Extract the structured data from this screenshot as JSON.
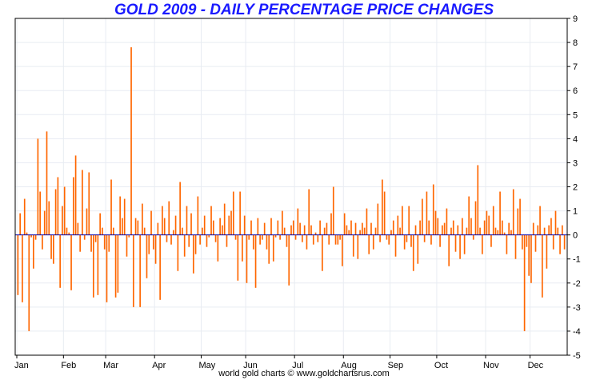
{
  "colors": {
    "bar": "#ff6600",
    "zero_line": "#0000aa",
    "grid": "#e8ecf2",
    "title": "#1a1aff"
  },
  "footer": "world gold charts © www.goldchartsrus.com",
  "chart_data": {
    "type": "bar",
    "title": "GOLD 2009 - DAILY PERCENTAGE PRICE CHANGES",
    "xlabel": "",
    "ylabel": "",
    "ylim": [
      -5,
      9
    ],
    "yticks": [
      -5,
      -4,
      -3,
      -2,
      -1,
      0,
      1,
      2,
      3,
      4,
      5,
      6,
      7,
      8,
      9
    ],
    "y_axis_side": "right",
    "grid": true,
    "months": [
      "Jan",
      "Feb",
      "Mar",
      "Apr",
      "May",
      "Jun",
      "Jul",
      "Aug",
      "Sep",
      "Oct",
      "Nov",
      "Dec"
    ],
    "x_unit": "trading day index (0-based, ~252 days in 2009)",
    "month_start_day": [
      0,
      21,
      40,
      62,
      83,
      103,
      125,
      147,
      168,
      189,
      211,
      231
    ],
    "values": [
      -2.5,
      0.9,
      -2.8,
      1.5,
      0.1,
      -4.0,
      -0.1,
      -1.4,
      -0.2,
      4.0,
      1.8,
      -0.6,
      1.0,
      4.3,
      1.4,
      -1.0,
      -1.2,
      1.9,
      2.4,
      -2.2,
      1.2,
      2.0,
      0.3,
      0.1,
      -2.3,
      2.4,
      3.3,
      0.5,
      -0.7,
      2.7,
      -0.2,
      1.1,
      2.6,
      -0.7,
      -2.6,
      -0.3,
      -2.5,
      0.9,
      0.3,
      -0.6,
      -2.8,
      -0.7,
      2.3,
      0.3,
      -2.6,
      -2.4,
      1.6,
      0.7,
      1.5,
      -0.9,
      -0.1,
      7.8,
      -3.0,
      0.7,
      0.6,
      -3.0,
      1.3,
      0.3,
      -1.8,
      -0.8,
      1.0,
      -0.6,
      -1.2,
      0.5,
      -2.7,
      1.2,
      0.7,
      -0.3,
      1.4,
      -0.4,
      0.2,
      0.8,
      -1.5,
      2.2,
      0.3,
      -0.9,
      1.2,
      -0.5,
      0.9,
      -1.6,
      -0.8,
      1.6,
      -0.4,
      0.3,
      0.8,
      -0.5,
      -0.1,
      1.2,
      0.6,
      -0.3,
      -1.1,
      0.7,
      0.4,
      1.3,
      -0.5,
      0.8,
      1.0,
      1.8,
      -0.2,
      -1.9,
      1.8,
      -1.1,
      0.8,
      -2.0,
      -0.2,
      0.6,
      -0.6,
      -2.2,
      0.7,
      -0.4,
      -0.2,
      0.5,
      -0.6,
      -1.2,
      0.7,
      -1.1,
      -0.1,
      0.6,
      -0.2,
      1.0,
      0.3,
      -0.5,
      -2.1,
      0.4,
      0.6,
      -0.2,
      1.1,
      0.5,
      -0.3,
      0.4,
      -0.6,
      1.9,
      0.4,
      -0.4,
      0.1,
      -0.3,
      0.6,
      -1.5,
      0.3,
      0.5,
      -0.4,
      0.9,
      2.0,
      -0.4,
      -0.4,
      -0.2,
      -1.3,
      0.9,
      0.4,
      0.2,
      0.6,
      -0.9,
      0.5,
      -1.0,
      0.2,
      0.5,
      0.3,
      1.1,
      -0.8,
      0.5,
      -0.6,
      0.3,
      1.3,
      -0.3,
      2.3,
      1.8,
      -0.2,
      -0.4,
      0.2,
      0.6,
      -0.9,
      0.8,
      0.3,
      1.2,
      -0.6,
      -0.3,
      1.2,
      -0.5,
      -1.5,
      0.4,
      -1.2,
      0.6,
      1.5,
      -0.3,
      1.8,
      0.6,
      -0.4,
      2.1,
      1.0,
      0.7,
      -0.5,
      0.4,
      0.5,
      1.1,
      -1.3,
      0.3,
      0.6,
      -0.7,
      0.4,
      -1.0,
      0.7,
      -0.8,
      0.3,
      1.6,
      0.7,
      -0.2,
      1.4,
      2.9,
      0.3,
      -0.8,
      0.6,
      1.0,
      0.8,
      -0.5,
      1.2,
      0.3,
      0.2,
      1.8,
      0.6,
      0.1,
      -0.8,
      0.5,
      0.2,
      1.9,
      -1.0,
      1.1,
      1.5,
      -0.6,
      -4.0,
      -0.5,
      -1.7,
      -2.0,
      0.5,
      -0.7,
      0.4,
      1.2,
      -2.6,
      0.3,
      -1.4,
      0.4,
      0.7,
      -0.6,
      1.0,
      0.3,
      -0.8,
      0.4,
      -0.6
    ]
  }
}
